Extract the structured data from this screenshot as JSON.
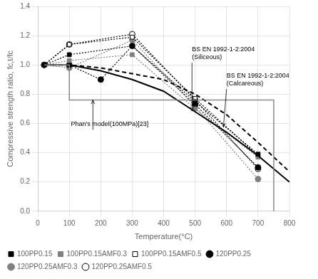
{
  "chart_data": {
    "type": "line",
    "xlabel": "Temperature(°C)",
    "ylabel": "Compressive strength ratio, fc,t/fc",
    "xlim": [
      0,
      800
    ],
    "ylim": [
      0.0,
      1.4
    ],
    "xticks": [
      0,
      100,
      200,
      300,
      400,
      500,
      600,
      700,
      800
    ],
    "yticks": [
      {
        "value": 0.0,
        "label": "0.0"
      },
      0.2,
      0.4,
      0.6,
      0.8,
      {
        "value": 1.0,
        "label": "1.0"
      },
      1.2,
      1.4
    ],
    "grid": true,
    "legend": "lower left",
    "series": [
      {
        "x": [
          20,
          100,
          100,
          750,
          750
        ],
        "values": [
          1.0,
          1.0,
          0.76,
          0.76,
          0.0
        ],
        "color": "#888888",
        "line_style": "solid"
      },
      {
        "x": [
          20,
          100,
          200,
          300,
          400,
          500,
          600,
          700,
          800
        ],
        "values": [
          1.0,
          1.0,
          0.96,
          0.9,
          0.82,
          0.68,
          0.54,
          0.38,
          0.2
        ],
        "color": "black",
        "line_style": "solid"
      },
      {
        "x": [
          20,
          100,
          200,
          300,
          400,
          500,
          600,
          700,
          800
        ],
        "values": [
          1.0,
          1.0,
          0.98,
          0.94,
          0.9,
          0.8,
          0.66,
          0.47,
          0.27
        ],
        "color": "black",
        "line_style": "dashed"
      },
      {
        "name": "100PP0.15",
        "x": [
          20,
          100,
          300,
          500,
          700
        ],
        "values": [
          1.0,
          1.07,
          1.13,
          0.75,
          0.39
        ],
        "color": "black",
        "marker": "square",
        "line_style": "dotted"
      },
      {
        "name": "100PP0.15AMF0.3",
        "x": [
          20,
          100,
          300,
          500,
          700
        ],
        "values": [
          1.0,
          1.03,
          1.07,
          0.7,
          0.37
        ],
        "color": "#808080",
        "marker": "square",
        "line_style": "dotted"
      },
      {
        "name": "100PP0.15AMF0.5",
        "x": [
          20,
          100,
          300,
          500,
          700
        ],
        "values": [
          1.0,
          1.14,
          1.19,
          0.77,
          0.38
        ],
        "color": "black",
        "marker": "square_open",
        "line_style": "dotted"
      },
      {
        "name": "120PP0.25",
        "x": [
          20,
          100,
          200,
          300,
          500,
          700
        ],
        "values": [
          1.0,
          1.0,
          0.9,
          1.13,
          0.73,
          0.3
        ],
        "color": "black",
        "marker": "circle",
        "line_style": "dotted"
      },
      {
        "name": "120PP0.25AMF0.3",
        "x": [
          20,
          100,
          300,
          500,
          700
        ],
        "values": [
          1.0,
          0.98,
          1.17,
          0.715,
          0.22
        ],
        "color": "#808080",
        "marker": "circle",
        "line_style": "dotted"
      },
      {
        "name": "120PP0.25AMF0.5",
        "x": [
          20,
          100,
          300,
          500,
          700
        ],
        "values": [
          1.0,
          1.14,
          1.21,
          0.76,
          0.29
        ],
        "color": "black",
        "marker": "circle_open",
        "line_style": "dotted"
      }
    ],
    "annotations": [
      {
        "text": "BS EN 1992-1-2:2004\n(Siliceous)",
        "xy": [
          490,
          0.685
        ],
        "text_xy": [
          490,
          1.02
        ]
      },
      {
        "text": "BS EN 1992-1-2:2004\n(Calcareous)",
        "xy": [
          590,
          0.575
        ],
        "text_xy": [
          600,
          0.84
        ]
      },
      {
        "text": "Phan's model(100MPa)[23]",
        "xy": [
          175,
          0.76
        ],
        "text_xy": [
          105,
          0.615
        ]
      }
    ]
  }
}
